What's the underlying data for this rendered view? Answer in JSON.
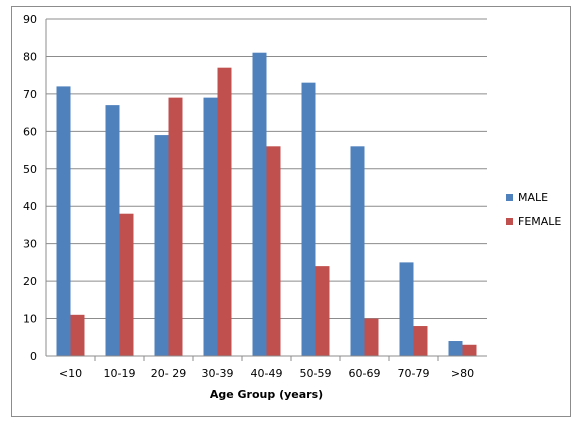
{
  "chart_data": {
    "type": "bar",
    "categories": [
      "<10",
      "10-19",
      "20- 29",
      "30-39",
      "40-49",
      "50-59",
      "60-69",
      "70-79",
      ">80"
    ],
    "series": [
      {
        "name": "MALE",
        "values": [
          72,
          67,
          59,
          69,
          81,
          73,
          56,
          25,
          4
        ],
        "color": "#4f81bd"
      },
      {
        "name": "FEMALE",
        "values": [
          11,
          38,
          69,
          77,
          56,
          24,
          10,
          8,
          3
        ],
        "color": "#c0504d"
      }
    ],
    "xlabel": "Age Group (years)",
    "ylabel": "",
    "ylim": [
      0,
      90
    ],
    "yticks": [
      0,
      10,
      20,
      30,
      40,
      50,
      60,
      70,
      80,
      90
    ],
    "grid": true,
    "legend_position": "right"
  }
}
